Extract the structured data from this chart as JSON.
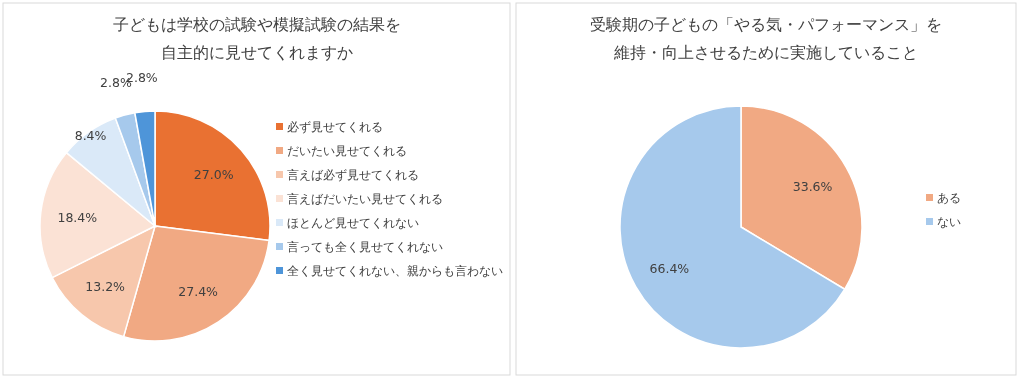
{
  "chart_data": [
    {
      "type": "pie",
      "title": "子どもは学校の試験や模擬試験の結果を自主的に見せてくれますか",
      "legend": "right",
      "categories": [
        "必ず見せてくれる",
        "だいたい見せてくれる",
        "言えば必ず見せてくれる",
        "言えばだいたい見せてくれる",
        "ほとんど見せてくれない",
        "言っても全く見せてくれない",
        "全く見せてくれない、親からも言わない"
      ],
      "values": [
        27.0,
        27.4,
        13.2,
        18.4,
        8.4,
        2.8,
        2.8
      ],
      "value_labels": [
        "27.0%",
        "27.4%",
        "13.2%",
        "18.4%",
        "8.4%",
        "2.8%",
        "2.8%"
      ],
      "colors": [
        "#e97132",
        "#f1a983",
        "#f7c7ac",
        "#fbe2d5",
        "#dae9f8",
        "#a6c9ec",
        "#4e95d9"
      ]
    },
    {
      "type": "pie",
      "title": "受験期の子どもの「やる気・パフォーマンス」を維持・向上させるために実施していること",
      "legend": "right",
      "categories": [
        "ある",
        "ない"
      ],
      "values": [
        33.6,
        66.4
      ],
      "value_labels": [
        "33.6%",
        "66.4%"
      ],
      "colors": [
        "#f1a983",
        "#a6c9ec"
      ]
    }
  ]
}
